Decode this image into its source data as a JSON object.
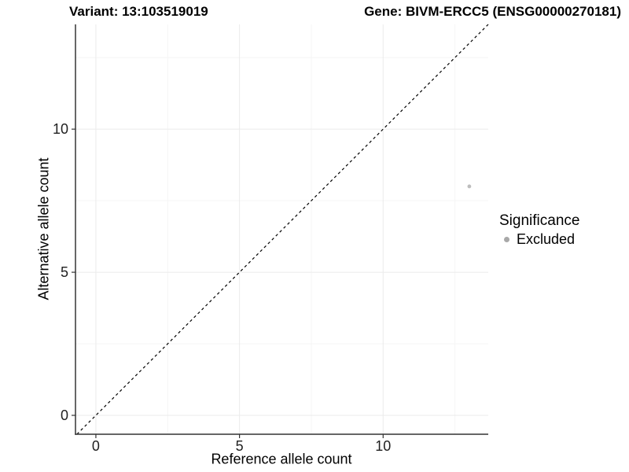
{
  "titles": {
    "variant": "Variant: 13:103519019",
    "gene": "Gene: BIVM-ERCC5 (ENSG00000270181)"
  },
  "axes": {
    "x": {
      "title": "Reference allele count"
    },
    "y": {
      "title": "Alternative allele count"
    }
  },
  "legend": {
    "title": "Significance",
    "items": [
      {
        "label": "Excluded",
        "color": "#a8a8a8"
      }
    ]
  },
  "chart_data": {
    "type": "scatter",
    "title": "Variant: 13:103519019  |  Gene: BIVM-ERCC5 (ENSG00000270181)",
    "xlabel": "Reference allele count",
    "ylabel": "Alternative allele count",
    "xlim": [
      -0.71,
      13.66
    ],
    "ylim": [
      -0.66,
      13.66
    ],
    "xticks": [
      0,
      5,
      10
    ],
    "yticks": [
      0,
      5,
      10
    ],
    "x_minor_gridlines": [
      2.5,
      7.5,
      12.5
    ],
    "y_minor_gridlines": [
      2.5,
      7.5,
      12.5
    ],
    "grid": "major-and-minor",
    "legend_position": "right",
    "series": [
      {
        "name": "Excluded",
        "points": [
          {
            "x": 13,
            "y": 8
          }
        ],
        "color": "#bdbdbd"
      }
    ],
    "reference_line": {
      "equation": "y = x",
      "style": "dashed",
      "color": "#000000"
    }
  },
  "colors": {
    "background": "#ffffff",
    "axis_line": "#333333",
    "grid_major": "#ebebeb",
    "grid_minor": "#f5f5f5",
    "tick_text": "#1f1f1f",
    "point": "#bdbdbd",
    "legend_key": "#a8a8a8",
    "dashed_line": "#000000"
  }
}
